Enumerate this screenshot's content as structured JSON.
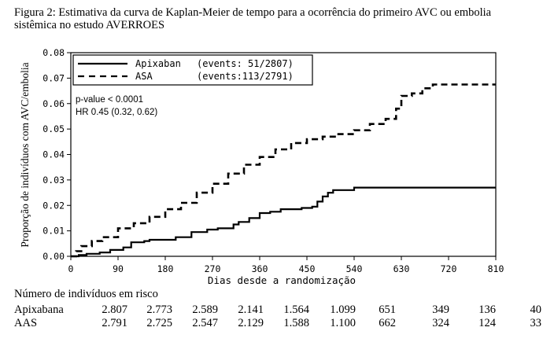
{
  "caption": {
    "line1": "Figura 2: Estimativa da curva de Kaplan-Meier de tempo para a ocorrência do primeiro AVC ou embolia",
    "line2": "sistêmica no estudo AVERROES"
  },
  "chart_data": {
    "type": "line",
    "ylabel": "Proporção de indivíduos com AVC/embolia",
    "xlabel": "Dias desde a randomização",
    "xlim": [
      0,
      810
    ],
    "ylim": [
      0,
      0.08
    ],
    "x_ticks": [
      0,
      90,
      180,
      270,
      360,
      450,
      540,
      630,
      720,
      810
    ],
    "x_tick_labels": [
      "0",
      "90",
      "180",
      "270",
      "360",
      "450",
      "540",
      "630",
      "720",
      "810"
    ],
    "y_ticks": [
      0,
      0.01,
      0.02,
      0.03,
      0.04,
      0.05,
      0.06,
      0.07,
      0.08
    ],
    "y_tick_labels": [
      "0.00",
      "0.01",
      "0.02",
      "0.03",
      "0.04",
      "0.05",
      "0.06",
      "0.07",
      "0.08"
    ],
    "grid": false,
    "legend_position": "top-left",
    "legend": [
      {
        "label": "Apixaban",
        "events": "(events: 51/2807)",
        "style": "solid"
      },
      {
        "label": "ASA",
        "events": "(events:113/2791)",
        "style": "dashed"
      }
    ],
    "annotations": [
      "p-value < 0.0001",
      "HR 0.45 (0.32, 0.62)"
    ],
    "series": [
      {
        "name": "Apixaban",
        "style": "solid",
        "x": [
          0,
          15,
          30,
          55,
          75,
          100,
          115,
          140,
          150,
          180,
          200,
          230,
          260,
          280,
          310,
          320,
          340,
          360,
          380,
          400,
          420,
          440,
          460,
          470,
          480,
          490,
          500,
          540,
          810
        ],
        "y": [
          0,
          0.0005,
          0.001,
          0.0015,
          0.0025,
          0.0035,
          0.0055,
          0.006,
          0.0065,
          0.0065,
          0.0075,
          0.0095,
          0.0105,
          0.011,
          0.0125,
          0.0135,
          0.015,
          0.017,
          0.0175,
          0.0185,
          0.0185,
          0.019,
          0.0195,
          0.0215,
          0.0235,
          0.025,
          0.026,
          0.027,
          0.027
        ]
      },
      {
        "name": "ASA",
        "style": "dashed",
        "x": [
          0,
          10,
          20,
          40,
          60,
          90,
          120,
          150,
          180,
          210,
          240,
          270,
          300,
          330,
          360,
          390,
          420,
          450,
          480,
          510,
          540,
          570,
          600,
          620,
          630,
          650,
          670,
          690,
          810
        ],
        "y": [
          0,
          0.002,
          0.004,
          0.006,
          0.0075,
          0.011,
          0.013,
          0.0155,
          0.0185,
          0.021,
          0.025,
          0.0285,
          0.0325,
          0.036,
          0.039,
          0.042,
          0.0445,
          0.046,
          0.047,
          0.048,
          0.0495,
          0.052,
          0.054,
          0.058,
          0.063,
          0.064,
          0.066,
          0.0675,
          0.0675
        ]
      }
    ]
  },
  "risk_table": {
    "title": "Número de indivíduos em risco",
    "rows": [
      {
        "label": "Apixabana",
        "values": [
          "2.807",
          "2.773",
          "2.589",
          "2.141",
          "1.564",
          "1.099",
          "651",
          "349",
          "136",
          "40"
        ]
      },
      {
        "label": "AAS",
        "values": [
          "2.791",
          "2.725",
          "2.547",
          "2.129",
          "1.588",
          "1.100",
          "662",
          "324",
          "124",
          "33"
        ]
      }
    ]
  }
}
